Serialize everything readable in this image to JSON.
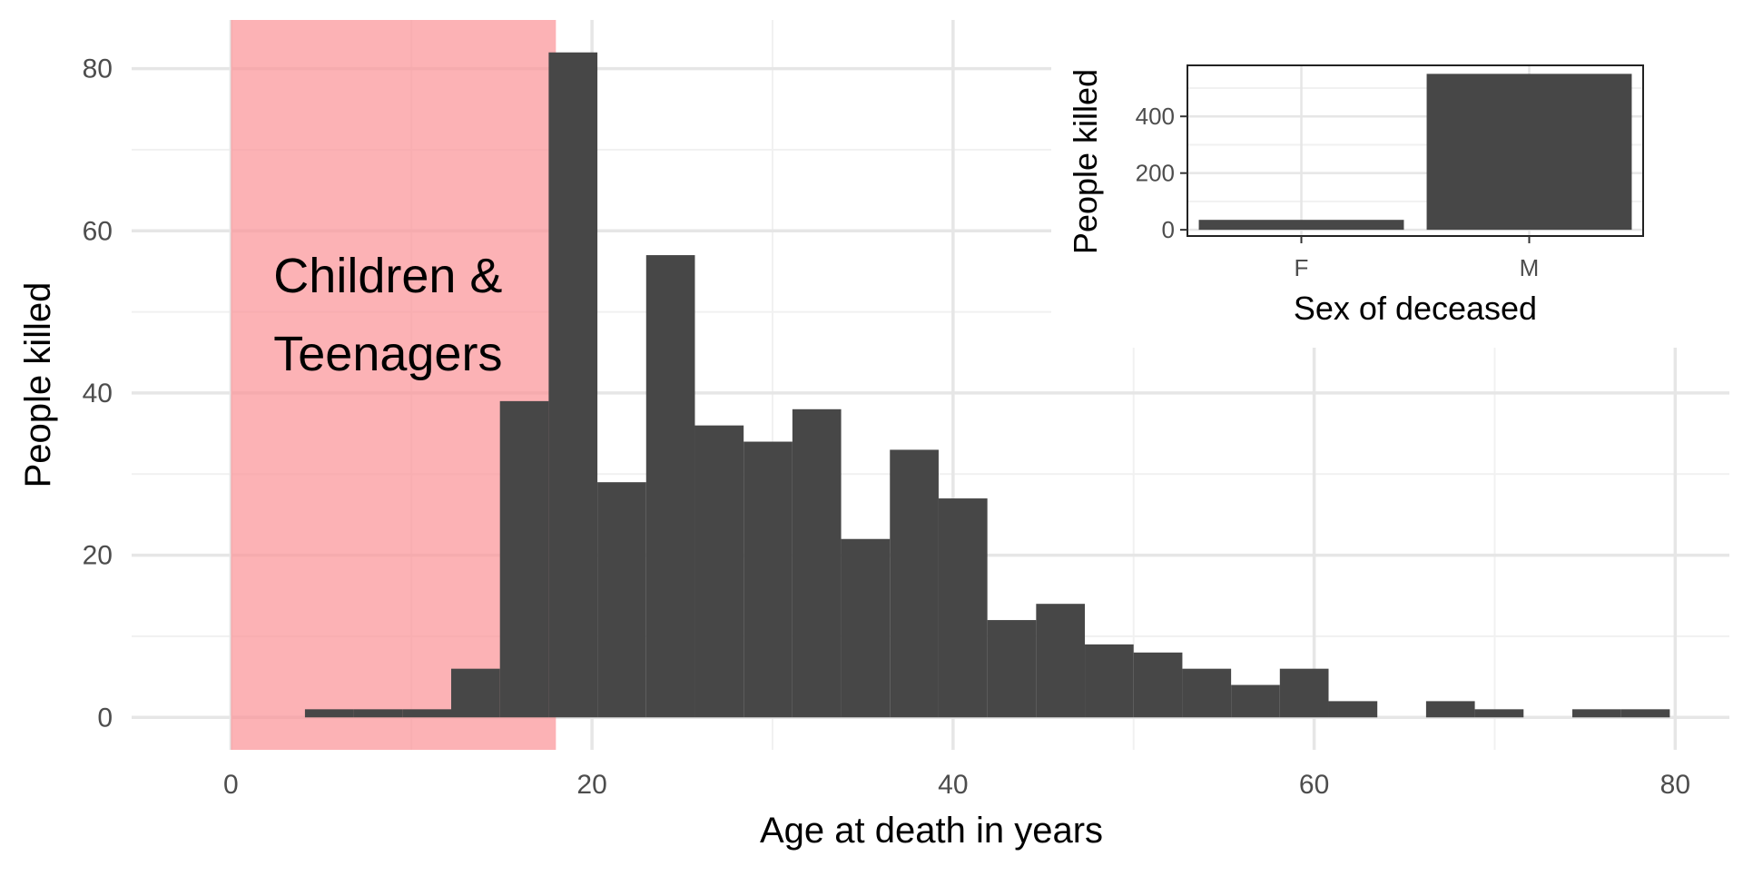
{
  "colors": {
    "bar": "#474747",
    "highlight": "#fb9499",
    "grid_major": "#e6e6e6",
    "grid_minor": "#f1f1f1",
    "background": "#ffffff"
  },
  "chart_data": [
    {
      "type": "bar",
      "xlabel": "Age at death in years",
      "ylabel": "People killed",
      "xlim": [
        -5.5,
        83
      ],
      "ylim": [
        -4,
        86
      ],
      "x_ticks": [
        0,
        20,
        40,
        60,
        80
      ],
      "y_ticks": [
        0,
        20,
        40,
        60,
        80
      ],
      "grid": true,
      "bin_width": 2.7,
      "bins": [
        {
          "x0": 4.1,
          "value": 1
        },
        {
          "x0": 6.8,
          "value": 1
        },
        {
          "x0": 9.5,
          "value": 1
        },
        {
          "x0": 12.2,
          "value": 6
        },
        {
          "x0": 14.9,
          "value": 39
        },
        {
          "x0": 17.6,
          "value": 82
        },
        {
          "x0": 20.3,
          "value": 29
        },
        {
          "x0": 23.0,
          "value": 57
        },
        {
          "x0": 25.7,
          "value": 36
        },
        {
          "x0": 28.4,
          "value": 34
        },
        {
          "x0": 31.1,
          "value": 38
        },
        {
          "x0": 33.8,
          "value": 22
        },
        {
          "x0": 36.5,
          "value": 33
        },
        {
          "x0": 39.2,
          "value": 27
        },
        {
          "x0": 41.9,
          "value": 12
        },
        {
          "x0": 44.6,
          "value": 14
        },
        {
          "x0": 47.3,
          "value": 9
        },
        {
          "x0": 50.0,
          "value": 8
        },
        {
          "x0": 52.7,
          "value": 6
        },
        {
          "x0": 55.4,
          "value": 4
        },
        {
          "x0": 58.1,
          "value": 6
        },
        {
          "x0": 60.8,
          "value": 2
        },
        {
          "x0": 63.5,
          "value": 0
        },
        {
          "x0": 66.2,
          "value": 2
        },
        {
          "x0": 68.9,
          "value": 1
        },
        {
          "x0": 71.6,
          "value": 0
        },
        {
          "x0": 74.3,
          "value": 1
        },
        {
          "x0": 77.0,
          "value": 1
        }
      ],
      "annotation": {
        "lines": [
          "Children &",
          "Teenagers"
        ],
        "x_range": [
          0,
          18
        ]
      }
    },
    {
      "type": "bar",
      "xlabel": "Sex of deceased",
      "ylabel": "People killed",
      "categories": [
        "F",
        "M"
      ],
      "values": [
        35,
        550
      ],
      "ylim": [
        -22,
        580
      ],
      "y_ticks": [
        0,
        200,
        400
      ],
      "grid": true
    }
  ]
}
